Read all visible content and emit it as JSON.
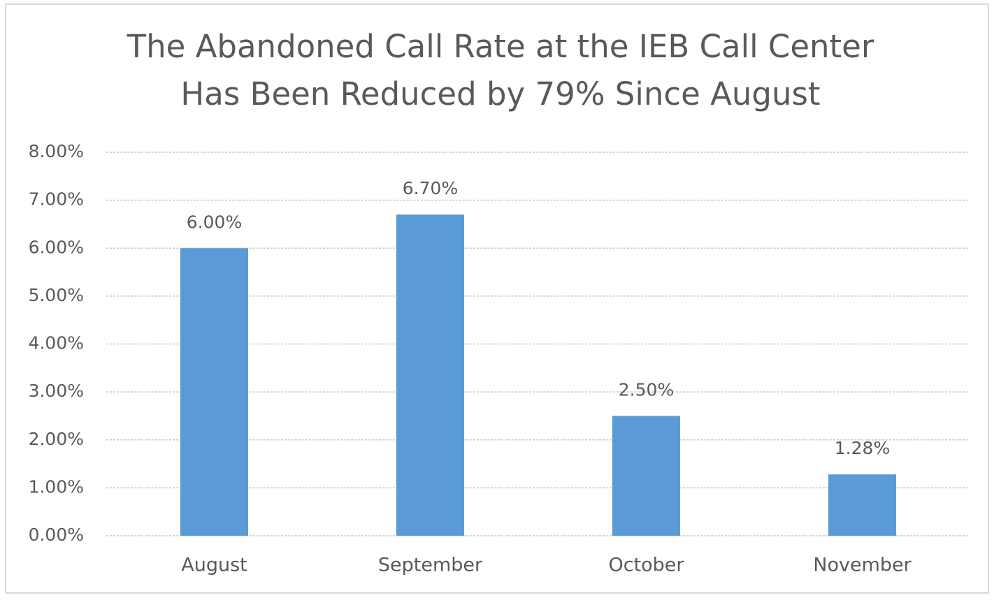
{
  "chart_data": {
    "type": "bar",
    "title": [
      "The Abandoned Call Rate at the IEB Call Center",
      "Has Been Reduced by 79% Since August"
    ],
    "categories": [
      "August",
      "September",
      "October",
      "November"
    ],
    "values": [
      6,
      6.7,
      2.5,
      1.28
    ],
    "value_labels": [
      "6.00%",
      "6.70%",
      "2.50%",
      "1.28%"
    ],
    "color": "#5b9bd5",
    "ylim": [
      0,
      8
    ],
    "yticks": [
      {
        "value": 0,
        "label": "0.00%"
      },
      {
        "value": 1,
        "label": "1.00%"
      },
      {
        "value": 2,
        "label": "2.00%"
      },
      {
        "value": 3,
        "label": "3.00%"
      },
      {
        "value": 4,
        "label": "4.00%"
      },
      {
        "value": 5,
        "label": "5.00%"
      },
      {
        "value": 6,
        "label": "6.00%"
      },
      {
        "value": 7,
        "label": "7.00%"
      },
      {
        "value": 8,
        "label": "8.00%"
      }
    ],
    "grid": true
  }
}
